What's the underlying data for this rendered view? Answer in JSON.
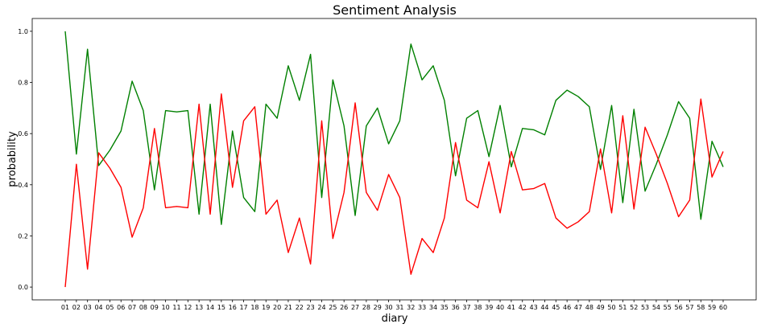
{
  "chart_data": {
    "type": "line",
    "title": "Sentiment Analysis",
    "xlabel": "diary",
    "ylabel": "probability",
    "categories": [
      "01",
      "02",
      "03",
      "04",
      "05",
      "06",
      "07",
      "08",
      "09",
      "10",
      "11",
      "12",
      "13",
      "14",
      "15",
      "16",
      "17",
      "18",
      "19",
      "20",
      "21",
      "22",
      "23",
      "24",
      "25",
      "26",
      "27",
      "28",
      "29",
      "30",
      "31",
      "32",
      "33",
      "34",
      "35",
      "36",
      "37",
      "38",
      "39",
      "40",
      "41",
      "42",
      "43",
      "44",
      "45",
      "46",
      "47",
      "48",
      "49",
      "50",
      "51",
      "52",
      "53",
      "54",
      "55",
      "56",
      "57",
      "58",
      "59",
      "60"
    ],
    "ylim": [
      -0.05,
      1.05
    ],
    "yticks": [
      "0.0",
      "0.2",
      "0.4",
      "0.6",
      "0.8",
      "1.0"
    ],
    "grid": false,
    "series": [
      {
        "color": "#008000",
        "values": [
          1.0,
          0.52,
          0.93,
          0.475,
          0.535,
          0.61,
          0.805,
          0.69,
          0.38,
          0.69,
          0.685,
          0.69,
          0.285,
          0.715,
          0.245,
          0.61,
          0.35,
          0.295,
          0.715,
          0.66,
          0.865,
          0.73,
          0.91,
          0.35,
          0.81,
          0.63,
          0.28,
          0.63,
          0.7,
          0.56,
          0.65,
          0.95,
          0.81,
          0.865,
          0.73,
          0.435,
          0.66,
          0.69,
          0.51,
          0.71,
          0.47,
          0.62,
          0.615,
          0.595,
          0.73,
          0.77,
          0.745,
          0.705,
          0.46,
          0.71,
          0.33,
          0.695,
          0.375,
          0.48,
          0.595,
          0.725,
          0.66,
          0.265,
          0.57,
          0.47
        ]
      },
      {
        "color": "#ff0000",
        "values": [
          0.0,
          0.48,
          0.07,
          0.525,
          0.465,
          0.39,
          0.195,
          0.31,
          0.62,
          0.31,
          0.315,
          0.31,
          0.715,
          0.285,
          0.755,
          0.39,
          0.65,
          0.705,
          0.285,
          0.34,
          0.135,
          0.27,
          0.09,
          0.65,
          0.19,
          0.37,
          0.72,
          0.37,
          0.3,
          0.44,
          0.35,
          0.05,
          0.19,
          0.135,
          0.27,
          0.565,
          0.34,
          0.31,
          0.49,
          0.29,
          0.53,
          0.38,
          0.385,
          0.405,
          0.27,
          0.23,
          0.255,
          0.295,
          0.54,
          0.29,
          0.67,
          0.305,
          0.625,
          0.52,
          0.405,
          0.275,
          0.34,
          0.735,
          0.43,
          0.53
        ]
      }
    ]
  }
}
